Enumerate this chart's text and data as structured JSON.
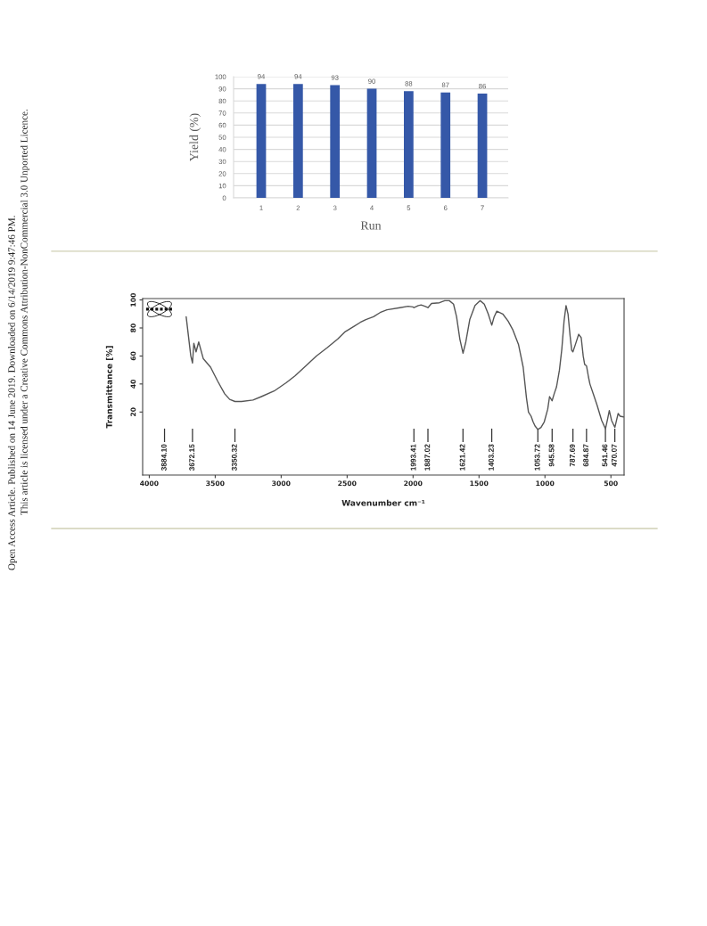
{
  "chart_data": [
    {
      "type": "bar",
      "xlabel": "Run",
      "ylabel": "Yield (%)",
      "categories": [
        "1",
        "2",
        "3",
        "4",
        "5",
        "6",
        "7"
      ],
      "values": [
        94,
        94,
        93,
        90,
        88,
        87,
        86
      ],
      "color": "#3558a8",
      "ylim": [
        0,
        100
      ],
      "yticks": [
        0,
        10,
        20,
        30,
        40,
        50,
        60,
        70,
        80,
        90,
        100
      ],
      "grid": "y",
      "data_labels": true,
      "annotations": [
        "Open Access Article. Published on 14 June 2019. Downloaded on 6/14/2019 9:47:46 PM.",
        "This article is licensed under a Creative Commons Attribution-NonCommercial 3.0 Unported Licence."
      ]
    },
    {
      "type": "line",
      "xlabel": "Wavenumber cm⁻¹",
      "ylabel": "Transmittance [%]",
      "color": "#555555",
      "x": [
        3720,
        3685,
        3672,
        3662,
        3645,
        3625,
        3590,
        3535,
        3481,
        3428,
        3390,
        3350,
        3300,
        3214,
        3150,
        3053,
        2960,
        2893,
        2800,
        2733,
        2650,
        2572,
        2519,
        2450,
        2400,
        2358,
        2300,
        2250,
        2198,
        2100,
        2037,
        2000,
        1993,
        1960,
        1939,
        1910,
        1887,
        1860,
        1800,
        1760,
        1725,
        1693,
        1670,
        1645,
        1621,
        1600,
        1570,
        1530,
        1491,
        1460,
        1430,
        1403,
        1385,
        1365,
        1320,
        1280,
        1245,
        1200,
        1165,
        1140,
        1125,
        1105,
        1090,
        1075,
        1054,
        1030,
        1005,
        979,
        965,
        946,
        930,
        912,
        890,
        872,
        855,
        840,
        825,
        810,
        797,
        788,
        770,
        744,
        725,
        710,
        699,
        685,
        670,
        659,
        630,
        605,
        570,
        541,
        525,
        512,
        495,
        470,
        455,
        445,
        430,
        405
      ],
      "values": [
        88,
        60,
        55,
        69,
        63,
        70,
        58,
        52,
        42,
        33,
        29,
        27.5,
        27.5,
        28.5,
        31,
        35,
        41,
        46,
        54,
        60,
        66,
        72,
        77,
        81,
        84,
        86,
        88,
        91,
        93,
        94.5,
        95.5,
        95,
        94.5,
        96,
        96.5,
        95.5,
        94.5,
        97.5,
        98,
        99.5,
        99.5,
        97,
        88,
        72,
        62,
        70,
        86,
        96,
        99.5,
        97,
        90,
        82,
        88,
        92,
        90,
        85,
        79,
        68,
        52,
        30,
        20,
        17,
        13,
        10,
        7.5,
        9,
        13,
        22,
        31,
        28,
        33,
        38,
        50,
        65,
        85,
        96,
        90,
        75,
        64,
        63,
        68,
        75.5,
        73,
        60,
        54,
        53,
        45,
        40,
        32,
        25,
        14,
        8,
        15,
        21,
        14,
        9,
        15,
        19,
        17,
        16.5
      ],
      "xlim": [
        4050,
        400
      ],
      "xticks": [
        4000,
        3500,
        3000,
        2500,
        2000,
        1500,
        1000,
        500
      ],
      "ylim": [
        -25,
        101
      ],
      "yticks": [
        20,
        40,
        60,
        80,
        100
      ],
      "ref_lines": [
        {
          "axis": "x",
          "value": 3884.1,
          "label": "3884.10",
          "color": "#333333"
        },
        {
          "axis": "x",
          "value": 3672.15,
          "label": "3672.15",
          "color": "#333333"
        },
        {
          "axis": "x",
          "value": 3350.32,
          "label": "3350.32",
          "color": "#333333"
        },
        {
          "axis": "x",
          "value": 1993.41,
          "label": "1993.41",
          "color": "#333333"
        },
        {
          "axis": "x",
          "value": 1887.02,
          "label": "1887.02",
          "color": "#333333"
        },
        {
          "axis": "x",
          "value": 1621.42,
          "label": "1621.42",
          "color": "#333333"
        },
        {
          "axis": "x",
          "value": 1403.23,
          "label": "1403.23",
          "color": "#333333"
        },
        {
          "axis": "x",
          "value": 1053.72,
          "label": "1053.72",
          "color": "#333333"
        },
        {
          "axis": "x",
          "value": 945.58,
          "label": "945.58",
          "color": "#333333"
        },
        {
          "axis": "x",
          "value": 787.69,
          "label": "787.69",
          "color": "#333333"
        },
        {
          "axis": "x",
          "value": 684.87,
          "label": "684.87",
          "color": "#333333"
        },
        {
          "axis": "x",
          "value": 541.46,
          "label": "541.46",
          "color": "#333333"
        },
        {
          "axis": "x",
          "value": 470.07,
          "label": "470.07",
          "color": "#333333"
        }
      ]
    }
  ]
}
